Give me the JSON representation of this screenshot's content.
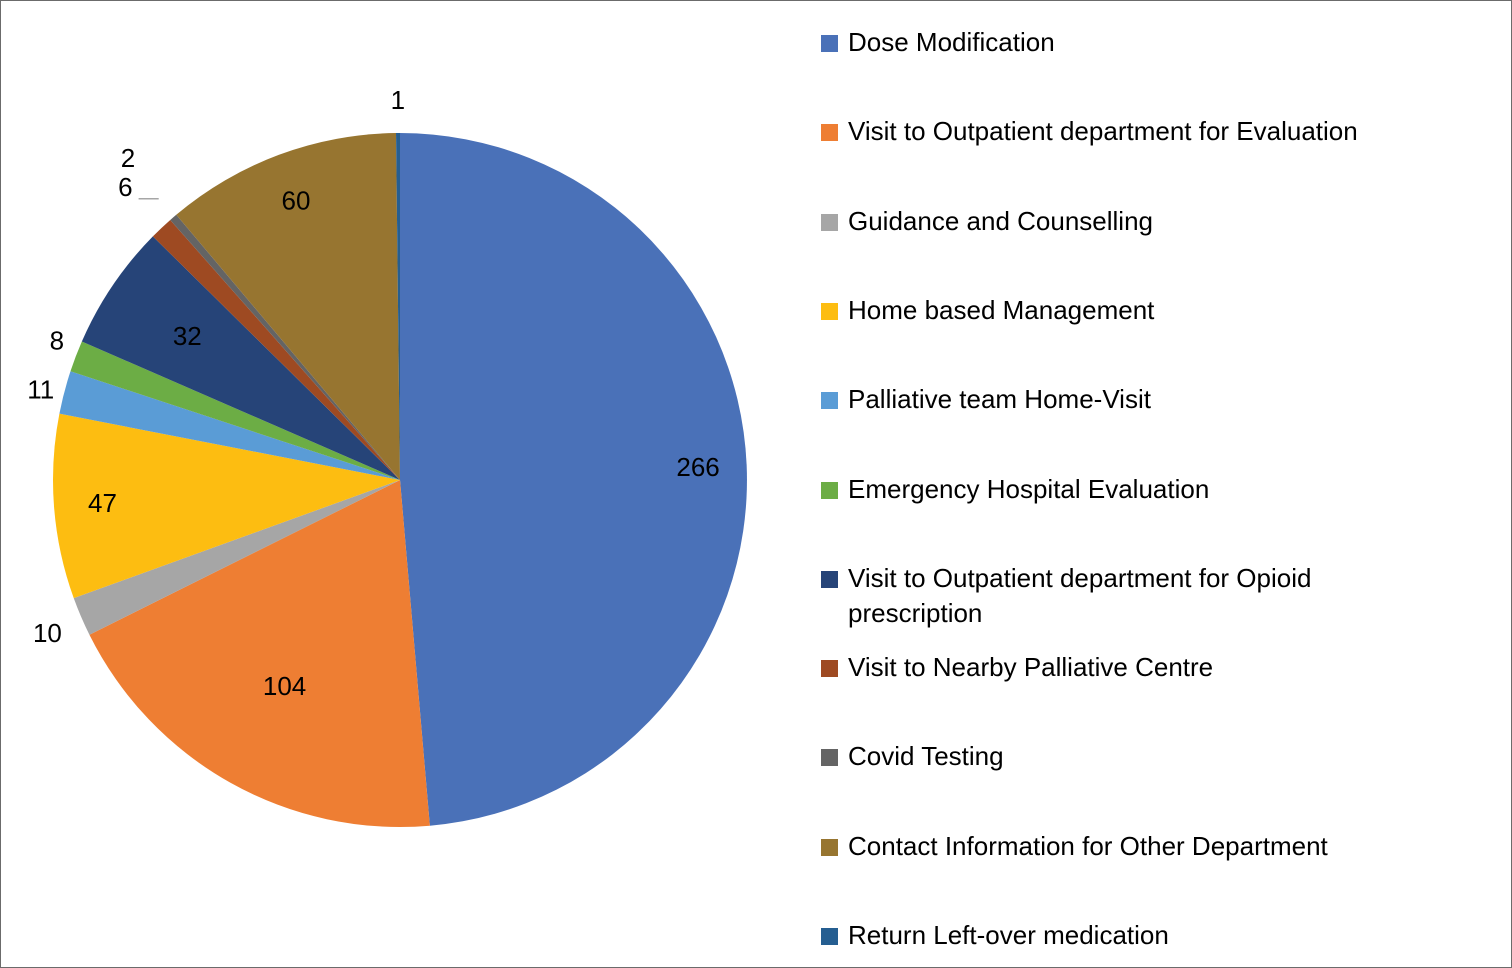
{
  "chart_data": {
    "type": "pie",
    "categories": [
      "Dose Modification",
      "Visit to Outpatient department for Evaluation",
      "Guidance and Counselling",
      "Home based Management",
      "Palliative team Home-Visit",
      "Emergency Hospital Evaluation",
      "Visit to Outpatient department for Opioid prescription",
      "Visit to Nearby Palliative Centre",
      "Covid Testing",
      "Contact Information for Other Department",
      "Return Left-over medication"
    ],
    "values": [
      266,
      104,
      10,
      47,
      11,
      8,
      32,
      6,
      2,
      60,
      1
    ],
    "colors": [
      "#4a71b8",
      "#ee7e33",
      "#a6a6a6",
      "#fdbd11",
      "#5a9cd6",
      "#6cad45",
      "#264478",
      "#9e4a22",
      "#646464",
      "#977530",
      "#255e91"
    ],
    "legend_position": "right",
    "direction": "clockwise",
    "start": "top"
  }
}
